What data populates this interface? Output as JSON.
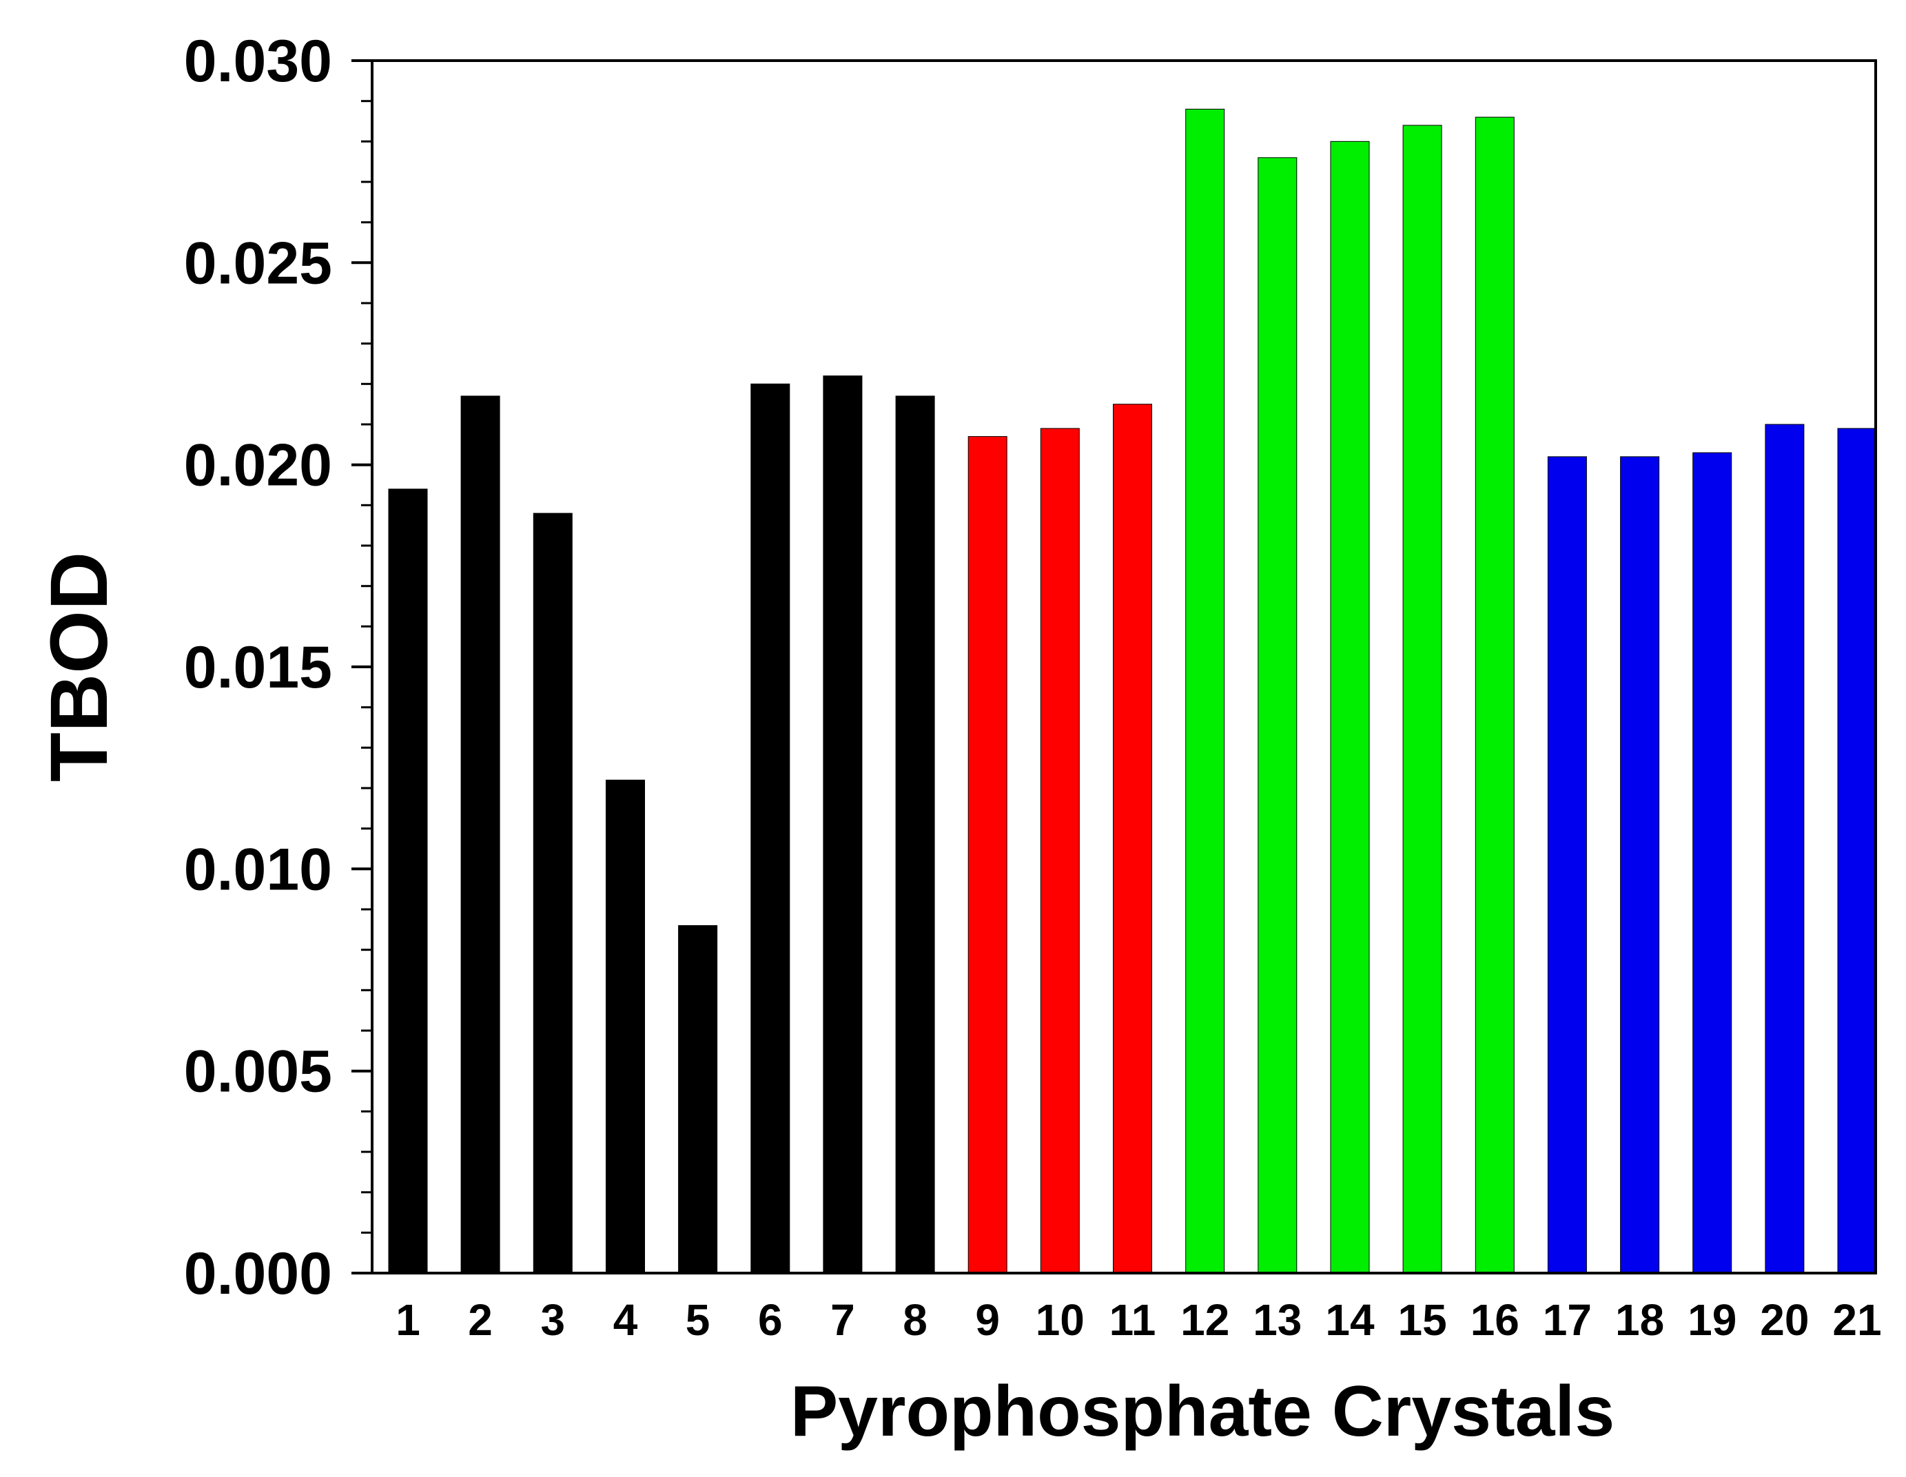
{
  "chart_data": {
    "type": "bar",
    "title": "",
    "xlabel": "Pyrophosphate Crystals",
    "ylabel": "TBOD",
    "ylim": [
      0,
      0.03
    ],
    "yticks": [
      "0.000",
      "0.005",
      "0.010",
      "0.015",
      "0.020",
      "0.025",
      "0.030"
    ],
    "categories": [
      "1",
      "2",
      "3",
      "4",
      "5",
      "6",
      "7",
      "8",
      "9",
      "10",
      "11",
      "12",
      "13",
      "14",
      "15",
      "16",
      "17",
      "18",
      "19",
      "20",
      "21"
    ],
    "values": [
      0.0194,
      0.0217,
      0.0188,
      0.0122,
      0.0086,
      0.022,
      0.0222,
      0.0217,
      0.0207,
      0.0209,
      0.0215,
      0.0288,
      0.0276,
      0.028,
      0.0284,
      0.0286,
      0.0202,
      0.0202,
      0.0203,
      0.021,
      0.0209
    ],
    "bar_colors": [
      "#000000",
      "#000000",
      "#000000",
      "#000000",
      "#000000",
      "#000000",
      "#000000",
      "#000000",
      "#ff0000",
      "#ff0000",
      "#ff0000",
      "#00ee00",
      "#00ee00",
      "#00ee00",
      "#00ee00",
      "#00ee00",
      "#0000ee",
      "#0000ee",
      "#0000ee",
      "#0000ee",
      "#0000ee"
    ],
    "grid": false,
    "legend": "none"
  }
}
